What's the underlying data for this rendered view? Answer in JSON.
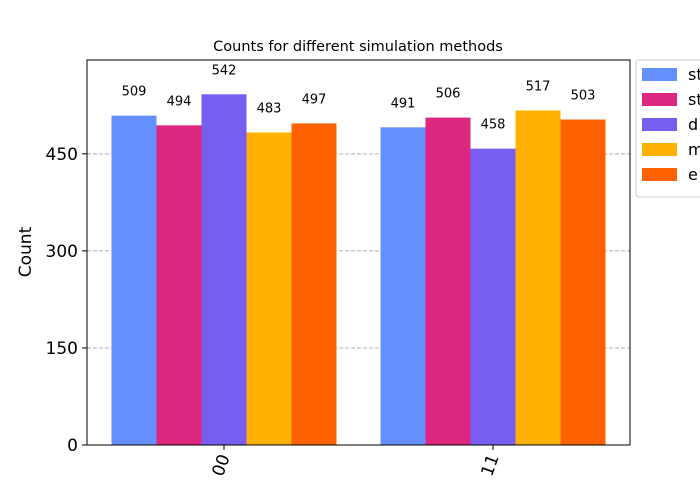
{
  "chart_data": {
    "type": "bar",
    "title": "Counts for different simulation methods",
    "ylabel": "Count",
    "xlabel": "",
    "categories": [
      "00",
      "11"
    ],
    "ylim": [
      0,
      595
    ],
    "yticks": [
      0,
      150,
      300,
      450
    ],
    "grid": "y-dashed",
    "legend_placement": "outside-top-right",
    "series": [
      {
        "name": "st",
        "color": "#648fff",
        "values": [
          509,
          491
        ]
      },
      {
        "name": "st",
        "color": "#dc267f",
        "values": [
          494,
          506
        ]
      },
      {
        "name": "d",
        "color": "#785ef0",
        "values": [
          542,
          458
        ]
      },
      {
        "name": "m",
        "color": "#ffb000",
        "values": [
          483,
          517
        ]
      },
      {
        "name": "e",
        "color": "#fe6100",
        "values": [
          497,
          503
        ]
      }
    ]
  }
}
